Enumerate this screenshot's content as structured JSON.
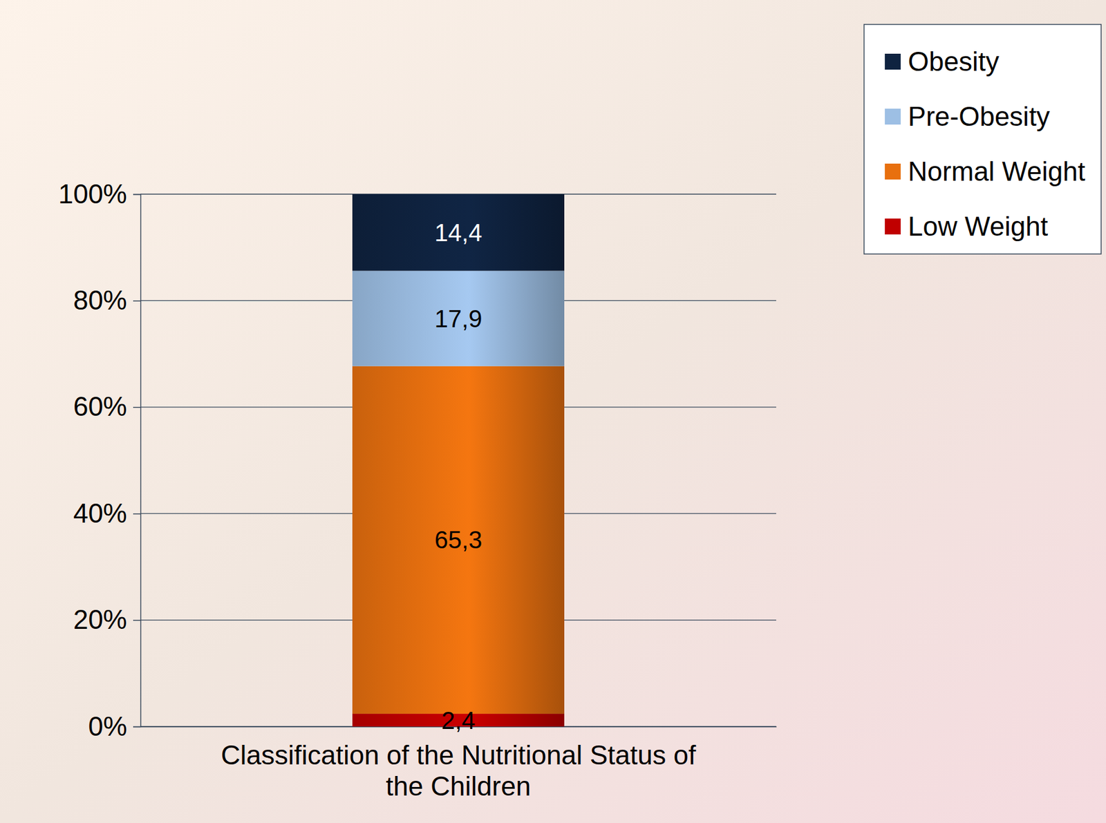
{
  "chart_data": {
    "type": "bar",
    "stacked": true,
    "data_labels": true,
    "legend": "top-right",
    "grid": true,
    "categories": [
      "Classification of the Nutritional Status of the Children"
    ],
    "series": [
      {
        "name": "Low Weight",
        "color": "#c00000",
        "values": [
          2.4
        ],
        "value_labels": [
          "2,4"
        ]
      },
      {
        "name": "Normal Weight",
        "color": "#e8700f",
        "values": [
          65.3
        ],
        "value_labels": [
          "65,3"
        ]
      },
      {
        "name": "Pre-Obesity",
        "color": "#9dbfe4",
        "values": [
          17.9
        ],
        "value_labels": [
          "17,9"
        ]
      },
      {
        "name": "Obesity",
        "color": "#0f2340",
        "values": [
          14.4
        ],
        "value_labels": [
          "14,4"
        ]
      }
    ],
    "ylim": [
      0,
      100
    ],
    "yticks": [
      {
        "value": 0,
        "label": "0%"
      },
      {
        "value": 20,
        "label": "20%"
      },
      {
        "value": 40,
        "label": "40%"
      },
      {
        "value": 60,
        "label": "60%"
      },
      {
        "value": 80,
        "label": "80%"
      },
      {
        "value": 100,
        "label": "100%"
      }
    ]
  }
}
